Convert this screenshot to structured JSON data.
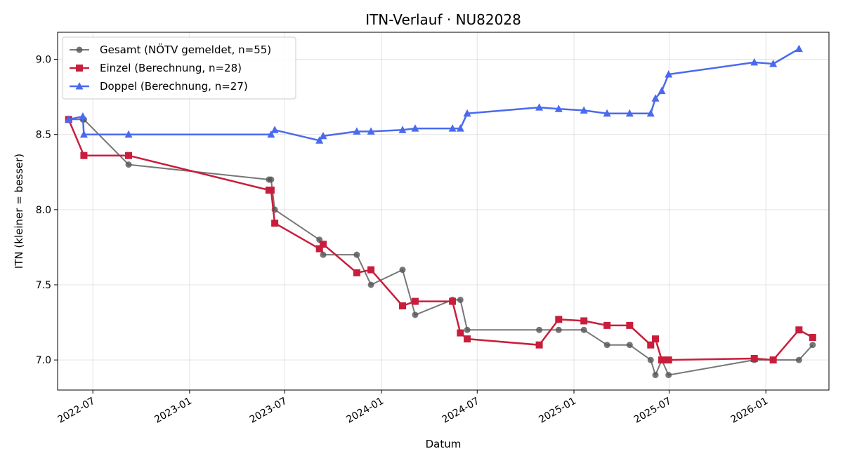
{
  "chart_data": {
    "type": "line",
    "title": "ITN-Verlauf · NU82028",
    "xlabel": "Datum",
    "ylabel": "ITN  (kleiner = besser)",
    "ylim": [
      6.8,
      9.18
    ],
    "xlim": [
      "2022-04-25",
      "2026-05-01"
    ],
    "yticks": [
      "7.0",
      "7.5",
      "8.0",
      "8.5",
      "9.0"
    ],
    "xticks": [
      "2022-07",
      "2023-01",
      "2023-07",
      "2024-01",
      "2024-07",
      "2025-01",
      "2025-07",
      "2026-01"
    ],
    "grid": true,
    "legend_position": "top-left",
    "series": [
      {
        "name": "Gesamt (NÖTV gemeldet, n=55)",
        "color": "#555555",
        "marker": "circle",
        "points": [
          [
            "2022-05-16",
            8.6
          ],
          [
            "2022-06-12",
            8.6
          ],
          [
            "2022-06-14",
            8.6
          ],
          [
            "2022-09-07",
            8.3
          ],
          [
            "2023-06-01",
            8.2
          ],
          [
            "2023-06-05",
            8.2
          ],
          [
            "2023-06-12",
            8.0
          ],
          [
            "2023-09-05",
            7.8
          ],
          [
            "2023-09-12",
            7.7
          ],
          [
            "2023-11-15",
            7.7
          ],
          [
            "2023-12-12",
            7.5
          ],
          [
            "2024-02-10",
            7.6
          ],
          [
            "2024-03-05",
            7.3
          ],
          [
            "2024-05-15",
            7.4
          ],
          [
            "2024-05-30",
            7.4
          ],
          [
            "2024-06-12",
            7.2
          ],
          [
            "2024-10-27",
            7.2
          ],
          [
            "2024-12-03",
            7.2
          ],
          [
            "2025-01-20",
            7.2
          ],
          [
            "2025-03-05",
            7.1
          ],
          [
            "2025-04-17",
            7.1
          ],
          [
            "2025-05-27",
            7.0
          ],
          [
            "2025-06-05",
            6.9
          ],
          [
            "2025-06-17",
            7.0
          ],
          [
            "2025-06-30",
            6.9
          ],
          [
            "2025-12-10",
            7.0
          ],
          [
            "2026-01-15",
            7.0
          ],
          [
            "2026-03-05",
            7.0
          ],
          [
            "2026-03-31",
            7.1
          ]
        ]
      },
      {
        "name": "Einzel (Berechnung, n=28)",
        "color": "#c81e3c",
        "marker": "square",
        "points": [
          [
            "2022-05-16",
            8.6
          ],
          [
            "2022-06-14",
            8.36
          ],
          [
            "2022-09-07",
            8.36
          ],
          [
            "2023-06-01",
            8.13
          ],
          [
            "2023-06-05",
            8.13
          ],
          [
            "2023-06-12",
            7.91
          ],
          [
            "2023-09-05",
            7.74
          ],
          [
            "2023-09-12",
            7.77
          ],
          [
            "2023-11-15",
            7.58
          ],
          [
            "2023-12-12",
            7.6
          ],
          [
            "2024-02-10",
            7.36
          ],
          [
            "2024-03-05",
            7.39
          ],
          [
            "2024-05-15",
            7.39
          ],
          [
            "2024-05-30",
            7.18
          ],
          [
            "2024-06-12",
            7.14
          ],
          [
            "2024-10-27",
            7.1
          ],
          [
            "2024-12-03",
            7.27
          ],
          [
            "2025-01-20",
            7.26
          ],
          [
            "2025-03-05",
            7.23
          ],
          [
            "2025-04-17",
            7.23
          ],
          [
            "2025-05-27",
            7.1
          ],
          [
            "2025-06-05",
            7.14
          ],
          [
            "2025-06-17",
            7.0
          ],
          [
            "2025-06-30",
            7.0
          ],
          [
            "2025-12-10",
            7.01
          ],
          [
            "2026-01-15",
            7.0
          ],
          [
            "2026-03-05",
            7.2
          ],
          [
            "2026-03-31",
            7.15
          ]
        ]
      },
      {
        "name": "Doppel (Berechnung, n=27)",
        "color": "#4a6aee",
        "marker": "triangle",
        "points": [
          [
            "2022-05-16",
            8.6
          ],
          [
            "2022-06-12",
            8.62
          ],
          [
            "2022-06-14",
            8.5
          ],
          [
            "2022-09-07",
            8.5
          ],
          [
            "2023-06-05",
            8.5
          ],
          [
            "2023-06-12",
            8.53
          ],
          [
            "2023-09-05",
            8.46
          ],
          [
            "2023-09-12",
            8.49
          ],
          [
            "2023-11-15",
            8.52
          ],
          [
            "2023-12-12",
            8.52
          ],
          [
            "2024-02-10",
            8.53
          ],
          [
            "2024-03-05",
            8.54
          ],
          [
            "2024-05-15",
            8.54
          ],
          [
            "2024-05-30",
            8.54
          ],
          [
            "2024-06-12",
            8.64
          ],
          [
            "2024-10-27",
            8.68
          ],
          [
            "2024-12-03",
            8.67
          ],
          [
            "2025-01-20",
            8.66
          ],
          [
            "2025-03-05",
            8.64
          ],
          [
            "2025-04-17",
            8.64
          ],
          [
            "2025-05-27",
            8.64
          ],
          [
            "2025-06-05",
            8.74
          ],
          [
            "2025-06-17",
            8.79
          ],
          [
            "2025-06-30",
            8.9
          ],
          [
            "2025-12-10",
            8.98
          ],
          [
            "2026-01-15",
            8.97
          ],
          [
            "2026-03-05",
            9.07
          ]
        ]
      }
    ]
  }
}
